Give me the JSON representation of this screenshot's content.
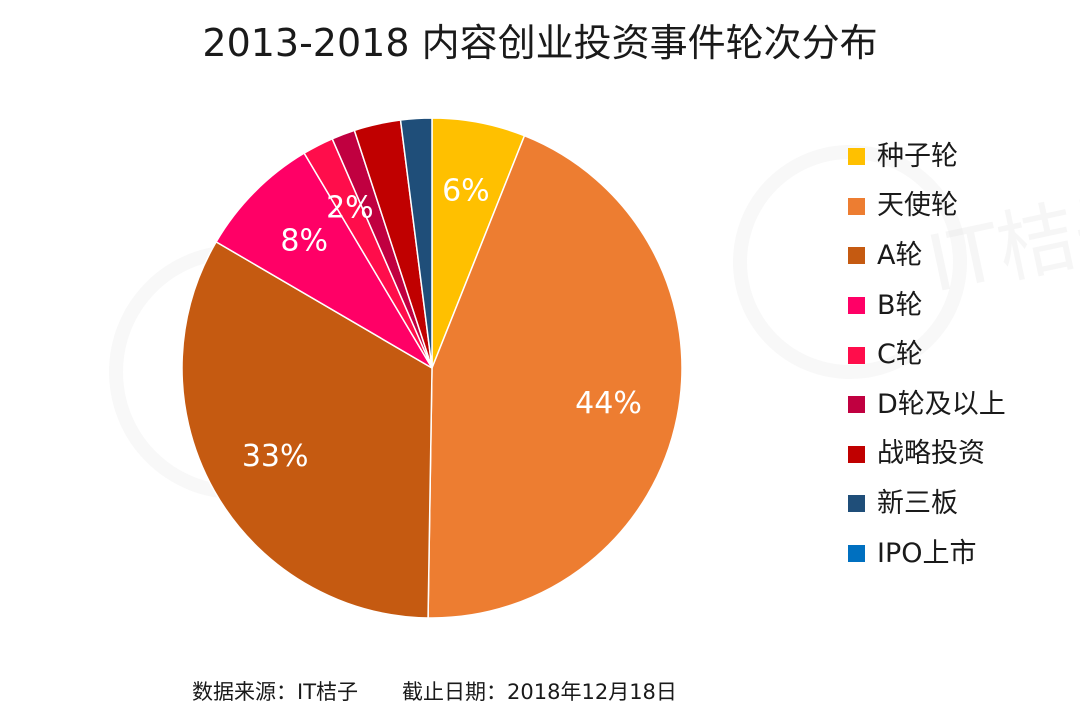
{
  "chart_data": {
    "type": "pie",
    "title": "2013-2018 内容创业投资事件轮次分布",
    "legend_position": "right",
    "slices": [
      {
        "name": "种子轮",
        "value": 6,
        "label": "6%",
        "color": "#FFC000"
      },
      {
        "name": "天使轮",
        "value": 44,
        "label": "44%",
        "color": "#ED7D31"
      },
      {
        "name": "A轮",
        "value": 33,
        "label": "33%",
        "color": "#C55A11"
      },
      {
        "name": "B轮",
        "value": 8,
        "label": "8%",
        "color": "#FF0066"
      },
      {
        "name": "C轮",
        "value": 2,
        "label": "2%",
        "color": "#FF0D4B"
      },
      {
        "name": "D轮及以上",
        "value": 1.5,
        "label": "",
        "color": "#C00040"
      },
      {
        "name": "战略投资",
        "value": 3,
        "label": "",
        "color": "#C00000"
      },
      {
        "name": "新三板",
        "value": 2,
        "label": "",
        "color": "#1F4E79"
      },
      {
        "name": "IPO上市",
        "value": 0,
        "label": "",
        "color": "#0070C0"
      }
    ]
  },
  "watermark": {
    "text": "IT桔子"
  },
  "footer": {
    "source": "数据来源：IT桔子",
    "date": "截止日期：2018年12月18日"
  }
}
